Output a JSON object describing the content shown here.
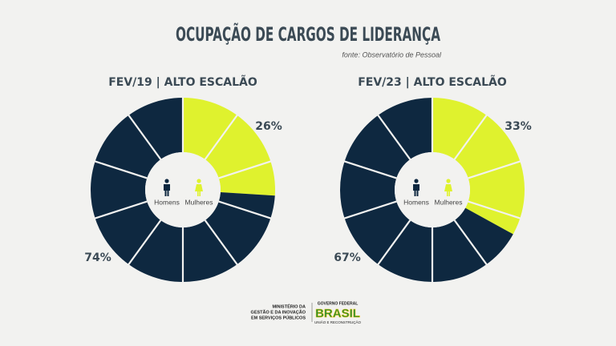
{
  "header": {
    "title": "OCUPAÇÃO DE CARGOS DE LIDERANÇA",
    "source": "fonte: Observatório de Pessoal"
  },
  "chart_data": [
    {
      "type": "pie",
      "title": "FEV/19 | ALTO ESCALÃO",
      "categories": [
        "Mulheres",
        "Homens"
      ],
      "values": [
        26,
        74
      ],
      "value_labels": [
        "26%",
        "74%"
      ],
      "colors": [
        "#dff22e",
        "#0e2840"
      ]
    },
    {
      "type": "pie",
      "title": "FEV/23 | ALTO ESCALÃO",
      "categories": [
        "Mulheres",
        "Homens"
      ],
      "values": [
        33,
        67
      ],
      "value_labels": [
        "33%",
        "67%"
      ],
      "colors": [
        "#dff22e",
        "#0e2840"
      ]
    }
  ],
  "footer": {
    "ministry": [
      "MINISTÉRIO DA",
      "GESTÃO E DA INOVAÇÃO",
      "EM SERVIÇOS PÚBLICOS"
    ],
    "government": "GOVERNO FEDERAL",
    "brand": "BRASIL",
    "slogan": "UNIÃO E RECONSTRUÇÃO"
  }
}
